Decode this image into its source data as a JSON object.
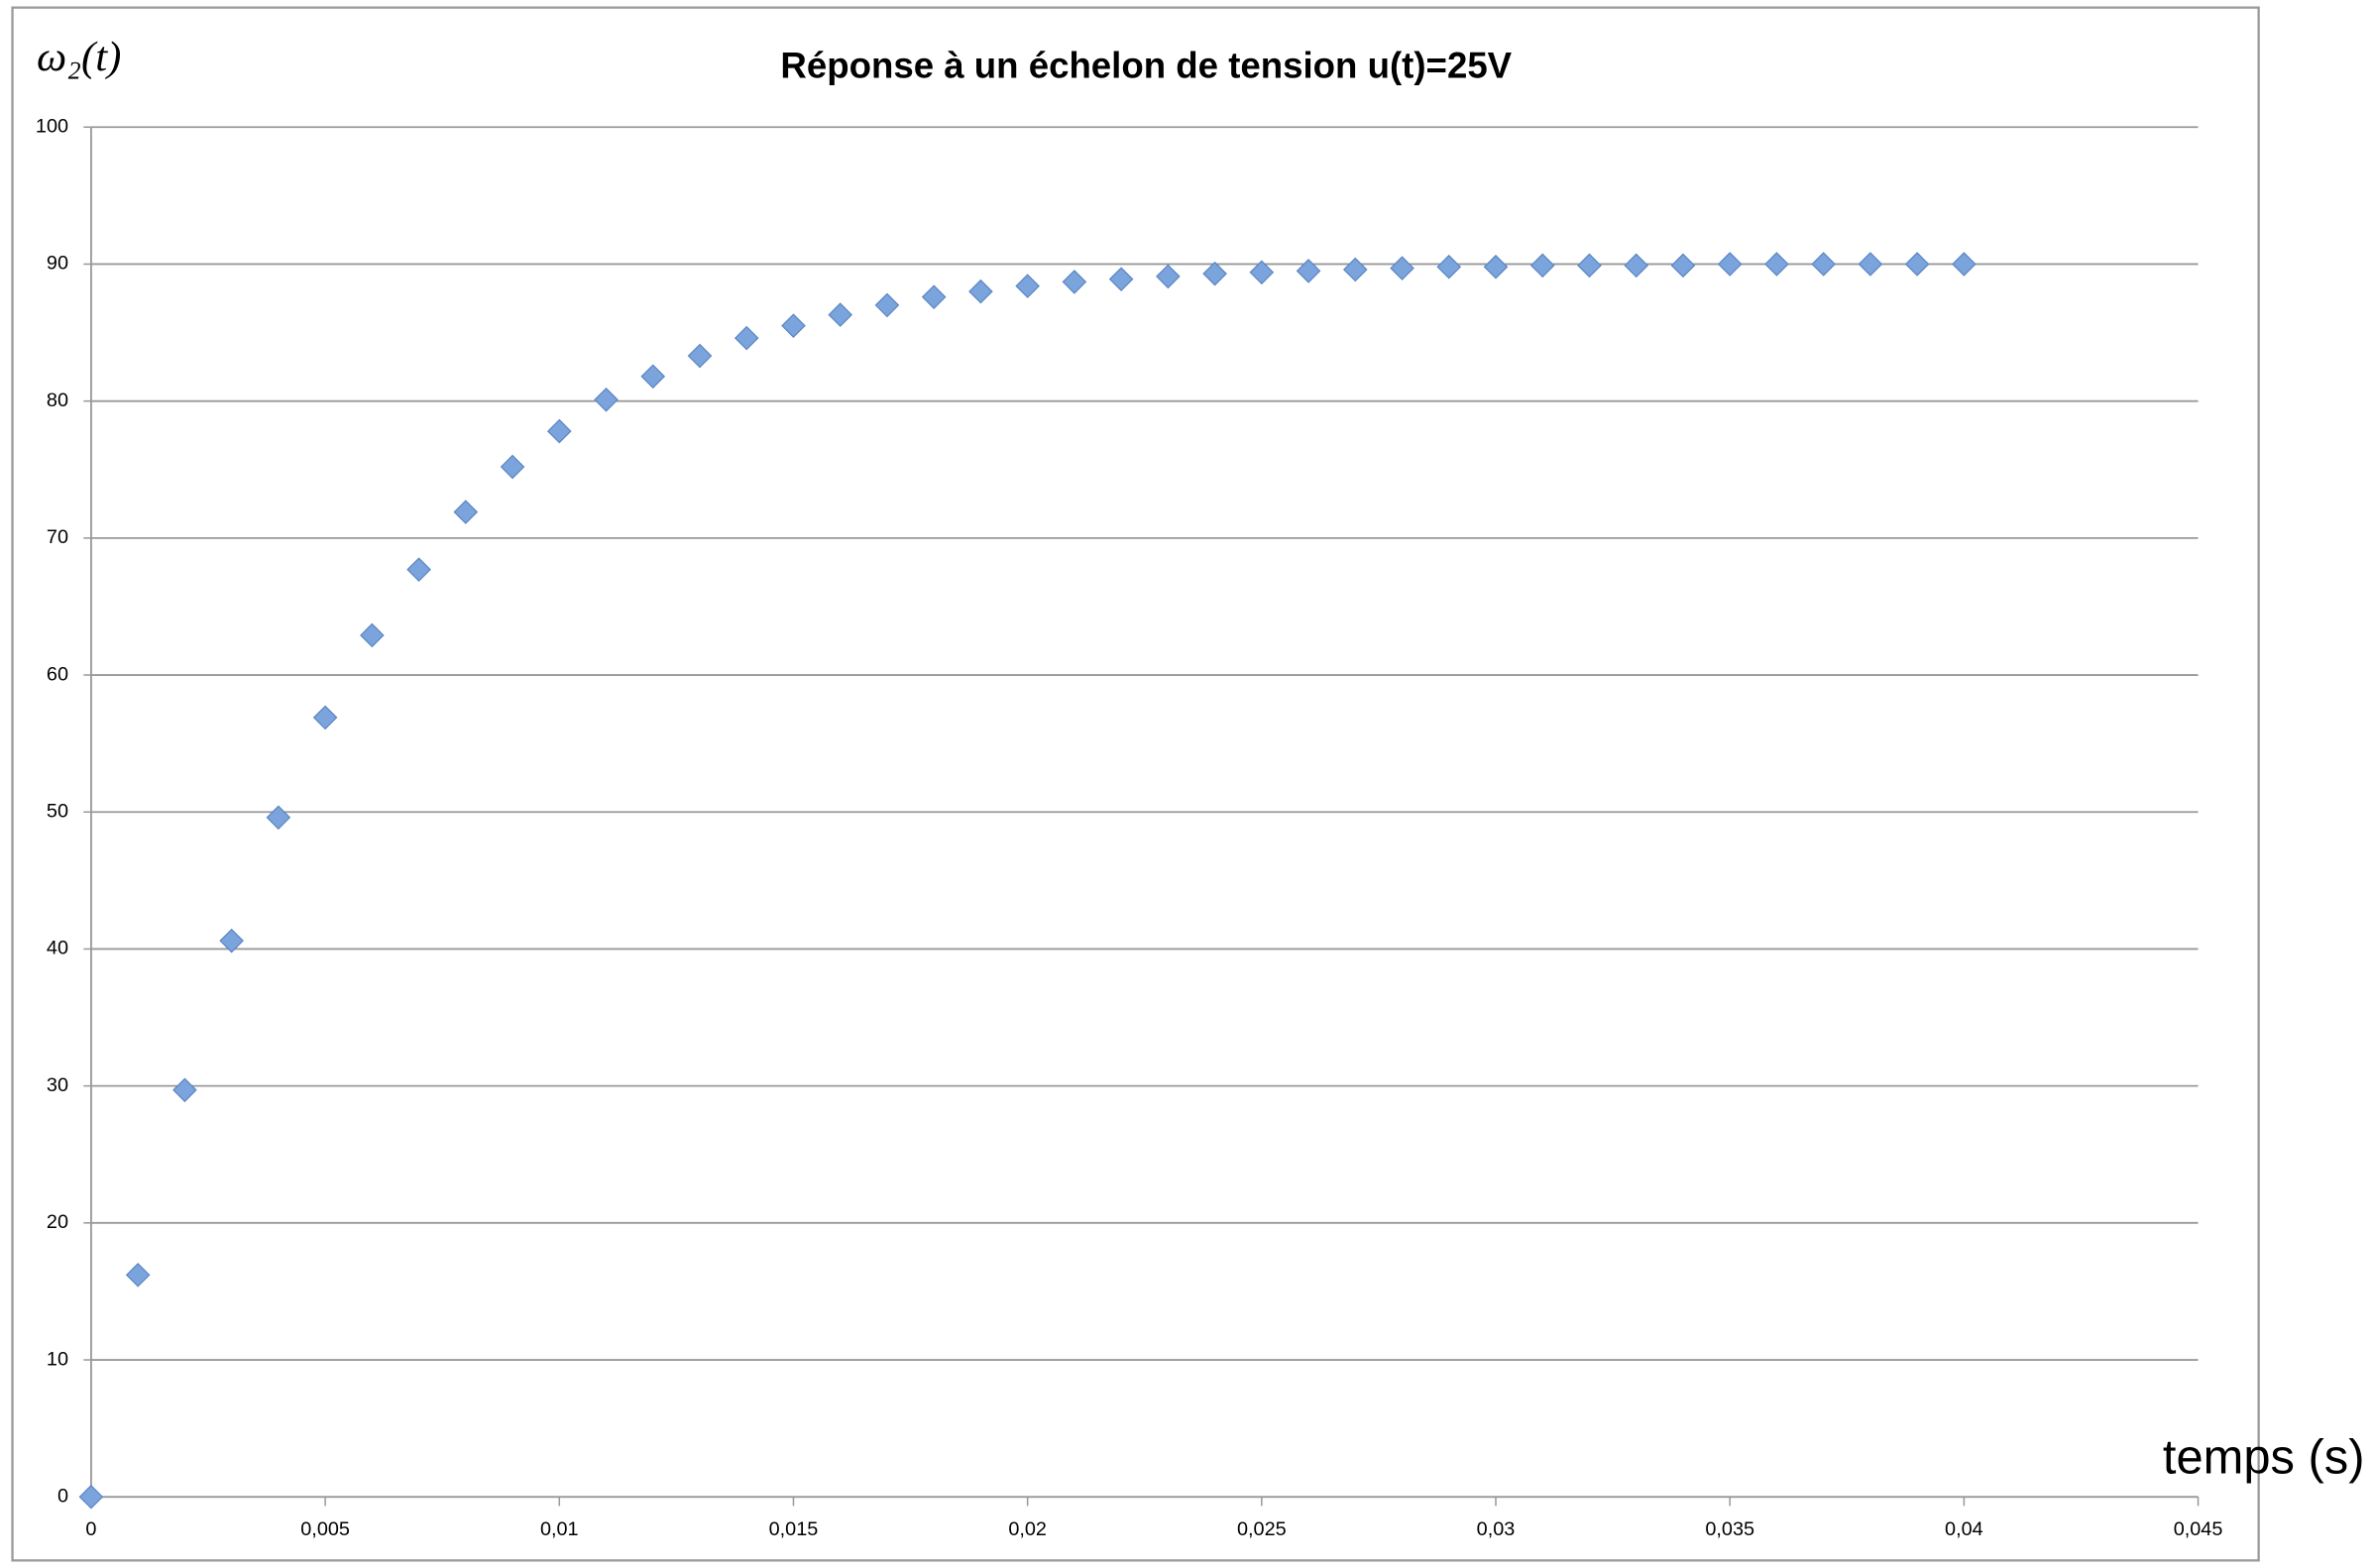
{
  "chart_data": {
    "type": "scatter",
    "title": "Réponse à un échelon de tension u(t)=25V",
    "x_label": "temps (s)",
    "y_label": "ω₂(t)",
    "color": "#7ba4dc",
    "grid": true,
    "x": [
      0,
      0.001,
      0.002,
      0.003,
      0.004,
      0.005,
      0.006,
      0.007,
      0.008,
      0.009,
      0.01,
      0.011,
      0.012,
      0.013,
      0.014,
      0.015,
      0.016,
      0.017,
      0.018,
      0.019,
      0.02,
      0.021,
      0.022,
      0.023,
      0.024,
      0.025,
      0.026,
      0.027,
      0.028,
      0.029,
      0.03,
      0.031,
      0.032,
      0.033,
      0.034,
      0.035,
      0.036,
      0.037,
      0.038,
      0.039,
      0.04
    ],
    "values": [
      0,
      16.2,
      29.7,
      40.6,
      49.6,
      56.9,
      62.9,
      67.7,
      71.9,
      75.2,
      77.8,
      80.1,
      81.8,
      83.3,
      84.6,
      85.5,
      86.3,
      87.0,
      87.6,
      88.0,
      88.4,
      88.7,
      88.9,
      89.1,
      89.3,
      89.4,
      89.5,
      89.6,
      89.7,
      89.8,
      89.8,
      89.9,
      89.9,
      89.9,
      89.9,
      90,
      90,
      90,
      90,
      90,
      90
    ],
    "xlim": [
      0,
      0.045
    ],
    "xticks": [
      0,
      {
        "value": 0.005,
        "label": "0,005"
      },
      {
        "value": 0.01,
        "label": "0,01"
      },
      {
        "value": 0.015,
        "label": "0,015"
      },
      {
        "value": 0.02,
        "label": "0,02"
      },
      {
        "value": 0.025,
        "label": "0,025"
      },
      {
        "value": 0.03,
        "label": "0,03"
      },
      {
        "value": 0.035,
        "label": "0,035"
      },
      {
        "value": 0.04,
        "label": "0,04"
      },
      {
        "value": 0.045,
        "label": "0,045"
      }
    ],
    "ylim": [
      0,
      100
    ],
    "yticks": [
      0,
      10,
      20,
      30,
      40,
      50,
      60,
      70,
      80,
      90,
      100
    ]
  }
}
